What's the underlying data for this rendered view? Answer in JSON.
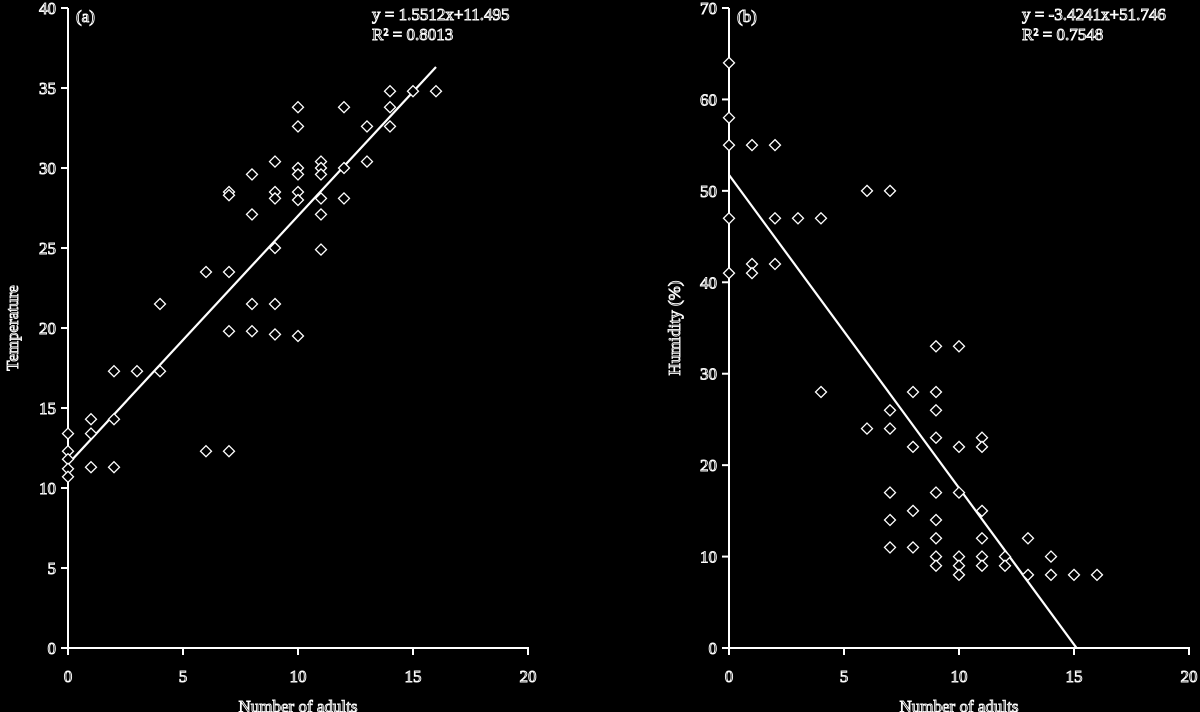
{
  "chart_data": [
    {
      "type": "scatter",
      "panel_label": "(a)",
      "title": "",
      "xlabel": "Number of adults",
      "ylabel": "Temperature",
      "xlim": [
        0,
        20
      ],
      "ylim": [
        0,
        40
      ],
      "xticks": [
        0,
        5,
        10,
        15,
        20
      ],
      "yticks": [
        0,
        5,
        10,
        15,
        20,
        25,
        30,
        35,
        40
      ],
      "grid": false,
      "trendline": {
        "slope": 1.5512,
        "intercept": 11.495,
        "x_range": [
          0,
          16
        ]
      },
      "equation": "y = 1.5512x+11.495",
      "r_squared": "R² = 0.8013",
      "points": [
        [
          0,
          13.4
        ],
        [
          0,
          12.3
        ],
        [
          0,
          11.8
        ],
        [
          0,
          11.2
        ],
        [
          0,
          10.7
        ],
        [
          1,
          14.3
        ],
        [
          1,
          13.4
        ],
        [
          1,
          11.3
        ],
        [
          2,
          17.3
        ],
        [
          2,
          14.3
        ],
        [
          2,
          11.3
        ],
        [
          3,
          17.3
        ],
        [
          4,
          21.5
        ],
        [
          4,
          17.3
        ],
        [
          6,
          23.5
        ],
        [
          6,
          12.3
        ],
        [
          7,
          28.5
        ],
        [
          7,
          28.3
        ],
        [
          7,
          23.5
        ],
        [
          7,
          19.8
        ],
        [
          7,
          12.3
        ],
        [
          8,
          29.6
        ],
        [
          8,
          27.1
        ],
        [
          8,
          21.5
        ],
        [
          8,
          19.8
        ],
        [
          9,
          30.4
        ],
        [
          9,
          28.5
        ],
        [
          9,
          28.1
        ],
        [
          9,
          25.0
        ],
        [
          9,
          21.5
        ],
        [
          9,
          19.6
        ],
        [
          10,
          33.8
        ],
        [
          10,
          32.6
        ],
        [
          10,
          30.0
        ],
        [
          10,
          29.6
        ],
        [
          10,
          28.5
        ],
        [
          10,
          28.0
        ],
        [
          10,
          19.5
        ],
        [
          11,
          30.4
        ],
        [
          11,
          30.0
        ],
        [
          11,
          29.6
        ],
        [
          11,
          28.1
        ],
        [
          11,
          27.1
        ],
        [
          11,
          24.9
        ],
        [
          12,
          33.8
        ],
        [
          12,
          30.0
        ],
        [
          12,
          28.1
        ],
        [
          13,
          32.6
        ],
        [
          13,
          30.4
        ],
        [
          14,
          34.8
        ],
        [
          14,
          33.8
        ],
        [
          14,
          32.6
        ],
        [
          15,
          34.8
        ],
        [
          16,
          34.8
        ]
      ]
    },
    {
      "type": "scatter",
      "panel_label": "(b)",
      "title": "",
      "xlabel": "Number of adults",
      "ylabel": "Humidity (%)",
      "xlim": [
        0,
        20
      ],
      "ylim": [
        0,
        70
      ],
      "xticks": [
        0,
        5,
        10,
        15,
        20
      ],
      "yticks": [
        0,
        10,
        20,
        30,
        40,
        50,
        60,
        70
      ],
      "grid": false,
      "trendline": {
        "slope": -3.4241,
        "intercept": 51.746,
        "x_range": [
          0,
          15.11
        ]
      },
      "equation": "y = -3.4241x+51.746",
      "r_squared": "R² = 0.7548",
      "points": [
        [
          0,
          64
        ],
        [
          0,
          58
        ],
        [
          0,
          55
        ],
        [
          0,
          47
        ],
        [
          0,
          41
        ],
        [
          1,
          55
        ],
        [
          1,
          42
        ],
        [
          1,
          41
        ],
        [
          2,
          55
        ],
        [
          2,
          47
        ],
        [
          2,
          42
        ],
        [
          3,
          47
        ],
        [
          4,
          47
        ],
        [
          4,
          28
        ],
        [
          6,
          50
        ],
        [
          6,
          24
        ],
        [
          7,
          50
        ],
        [
          7,
          26
        ],
        [
          7,
          24
        ],
        [
          7,
          17
        ],
        [
          7,
          14
        ],
        [
          7,
          11
        ],
        [
          8,
          28
        ],
        [
          8,
          22
        ],
        [
          8,
          15
        ],
        [
          8,
          11
        ],
        [
          9,
          33
        ],
        [
          9,
          28
        ],
        [
          9,
          26
        ],
        [
          9,
          23
        ],
        [
          9,
          17
        ],
        [
          9,
          14
        ],
        [
          9,
          12
        ],
        [
          9,
          10
        ],
        [
          9,
          9
        ],
        [
          10,
          33
        ],
        [
          10,
          22
        ],
        [
          10,
          17
        ],
        [
          10,
          10
        ],
        [
          10,
          9
        ],
        [
          10,
          8
        ],
        [
          11,
          23
        ],
        [
          11,
          22
        ],
        [
          11,
          15
        ],
        [
          11,
          12
        ],
        [
          11,
          10
        ],
        [
          11,
          9
        ],
        [
          12,
          10
        ],
        [
          12,
          9
        ],
        [
          13,
          12
        ],
        [
          13,
          8
        ],
        [
          14,
          10
        ],
        [
          14,
          8
        ],
        [
          15,
          8
        ],
        [
          16,
          8
        ]
      ]
    }
  ]
}
